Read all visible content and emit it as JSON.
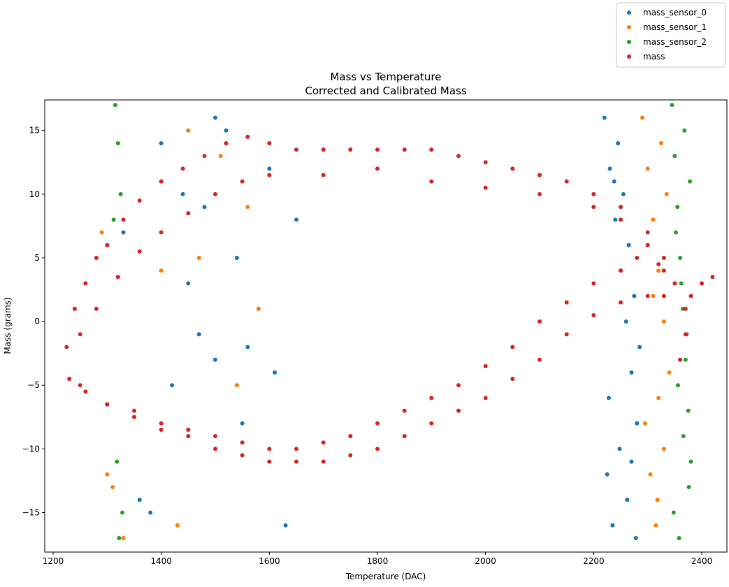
{
  "chart_data": {
    "type": "scatter",
    "title": "Mass vs Temperature",
    "subtitle": "Corrected and Calibrated Mass",
    "x_label": "Temperature (DAC)",
    "y_label": "Mass (grams)",
    "xlim": [
      1184.5,
      2446.5
    ],
    "ylim": [
      -18.1,
      17.4
    ],
    "xticks": [
      1200,
      1400,
      1600,
      1800,
      2000,
      2200,
      2400
    ],
    "yticks": [
      {
        "value": -15,
        "label": "−15"
      },
      {
        "value": -10,
        "label": "−10"
      },
      {
        "value": -5,
        "label": "−5"
      },
      0,
      5,
      10,
      15
    ],
    "grid": false,
    "legend": "upper right outside",
    "series": [
      {
        "name": "mass_sensor_0",
        "color": "#1f77b4",
        "x": [
          2220,
          2230,
          2240,
          2250,
          2260,
          2270,
          2280,
          2225,
          2235,
          2245,
          2255,
          2265,
          2275,
          2285,
          2228,
          2248,
          2262,
          2278,
          2238,
          2270,
          1330,
          1360,
          1400,
          1420,
          1450,
          1480,
          1500,
          1520,
          1550,
          1580,
          1600,
          1630,
          1650,
          1380,
          1440,
          1470,
          1540,
          1610,
          1500,
          1560
        ],
        "values": [
          16,
          12,
          8,
          4,
          0,
          -4,
          -8,
          -12,
          -16,
          14,
          10,
          6,
          2,
          -2,
          -6,
          -10,
          -14,
          -17,
          11,
          -11,
          7,
          -14,
          14,
          -5,
          3,
          9,
          -3,
          15,
          -8,
          1,
          12,
          -16,
          8,
          -15,
          10,
          -1,
          5,
          -4,
          16,
          -2
        ]
      },
      {
        "name": "mass_sensor_1",
        "color": "#ff7f0e",
        "x": [
          2290,
          2300,
          2310,
          2320,
          2330,
          2340,
          2295,
          2305,
          2315,
          2325,
          2335,
          2300,
          2310,
          2320,
          2330,
          2318,
          1290,
          1310,
          1330,
          1400,
          1430,
          1470,
          1510,
          1560,
          1580,
          1300,
          1450,
          1540
        ],
        "values": [
          16,
          12,
          8,
          4,
          0,
          -4,
          -8,
          -12,
          -16,
          14,
          10,
          6,
          2,
          -6,
          -10,
          -14,
          7,
          -13,
          -17,
          4,
          -16,
          5,
          13,
          9,
          1,
          -12,
          15,
          -5
        ]
      },
      {
        "name": "mass_sensor_2",
        "color": "#2ca02c",
        "x": [
          2345,
          2350,
          2355,
          2360,
          2365,
          2370,
          2375,
          2380,
          2348,
          2358,
          2368,
          2378,
          2352,
          2362,
          2372,
          2356,
          2366,
          2376,
          1315,
          1320,
          1325,
          1322,
          1318,
          1328,
          1312
        ],
        "values": [
          17,
          13,
          9,
          5,
          1,
          -3,
          -7,
          -11,
          -15,
          -17,
          15,
          11,
          7,
          3,
          -1,
          -5,
          -9,
          -13,
          17,
          14,
          10,
          -17,
          -11,
          -15,
          8
        ]
      },
      {
        "name": "mass",
        "color": "#d62728",
        "x": [
          1225,
          1240,
          1260,
          1280,
          1300,
          1330,
          1360,
          1400,
          1440,
          1480,
          1520,
          1560,
          1600,
          1650,
          1700,
          1750,
          1800,
          1850,
          1900,
          1950,
          2000,
          2050,
          2100,
          2150,
          2200,
          2250,
          2300,
          2330,
          2350,
          2370,
          1250,
          1280,
          1320,
          1360,
          1400,
          1450,
          1500,
          1550,
          1600,
          1700,
          1800,
          1900,
          2000,
          2100,
          2200,
          2250,
          2300,
          2330,
          1230,
          1260,
          1300,
          1350,
          1400,
          1450,
          1500,
          1550,
          1600,
          1650,
          1700,
          1750,
          1800,
          1850,
          1900,
          1950,
          2000,
          2050,
          2100,
          2150,
          2200,
          2250,
          2280,
          2320,
          1250,
          1300,
          1350,
          1400,
          1450,
          1500,
          1550,
          1600,
          1650,
          1700,
          1750,
          1800,
          1850,
          1900,
          1950,
          2000,
          2050,
          2100,
          2150,
          2200,
          2250,
          2300,
          2330,
          2360,
          2370,
          2380,
          2400,
          2420
        ],
        "values": [
          -2,
          1,
          3,
          5,
          6,
          8,
          9.5,
          11,
          12,
          13,
          14,
          14.5,
          14,
          13.5,
          13.5,
          13.5,
          13.5,
          13.5,
          13.5,
          13,
          12.5,
          12,
          11.5,
          11,
          10,
          9,
          7,
          5,
          3,
          1,
          -1,
          1,
          3.5,
          5.5,
          7,
          8.5,
          10,
          11,
          11.5,
          11.5,
          12,
          11,
          10.5,
          10,
          9,
          8,
          6,
          4,
          -4.5,
          -5.5,
          -6.5,
          -7,
          -8,
          -8.5,
          -9,
          -9.5,
          -10,
          -10,
          -9.5,
          -9,
          -8,
          -7,
          -6,
          -5,
          -3.5,
          -2,
          0,
          1.5,
          3,
          4,
          5,
          4.5,
          -5,
          -6.5,
          -7.5,
          -8.5,
          -9,
          -10,
          -10.5,
          -11,
          -11,
          -11,
          -10.5,
          -10,
          -9,
          -8,
          -7,
          -6,
          -4.5,
          -3,
          -1,
          0.5,
          1.5,
          2,
          2,
          -3,
          -1,
          2,
          3,
          3.5
        ]
      }
    ]
  }
}
